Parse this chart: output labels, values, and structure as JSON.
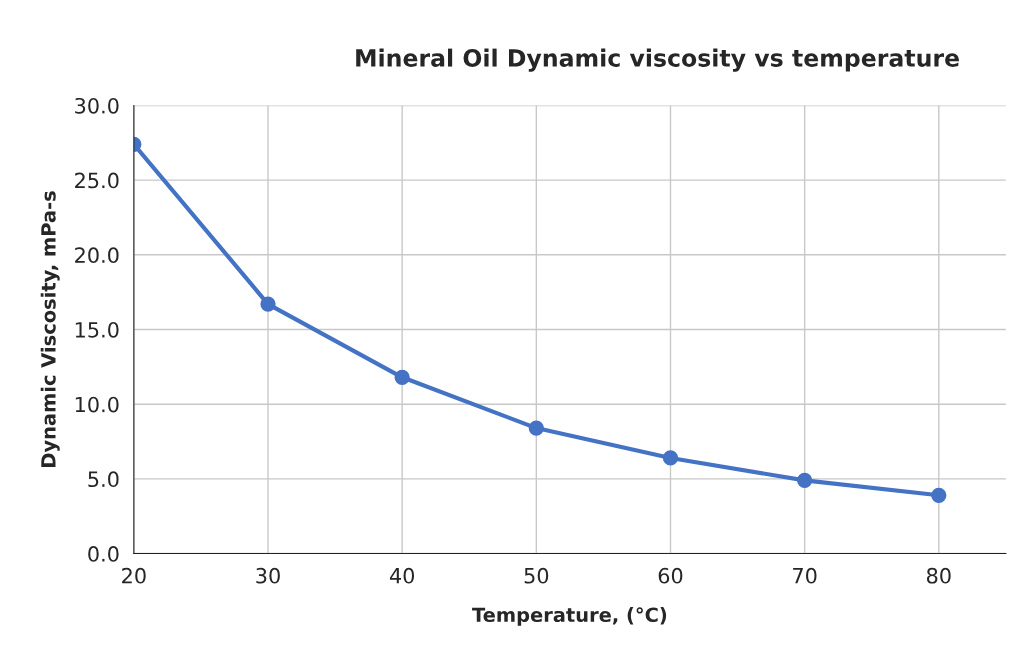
{
  "chart_data": {
    "type": "line",
    "title": "Mineral Oil Dynamic viscosity vs temperature",
    "xlabel": "Temperature, (°C)",
    "ylabel": "Dynamic Viscosity, mPa-s",
    "x": [
      20,
      30,
      40,
      50,
      60,
      70,
      80
    ],
    "series": [
      {
        "color": "#4472c4",
        "values": [
          27.4,
          16.7,
          11.8,
          8.4,
          6.4,
          4.9,
          3.9
        ]
      }
    ],
    "xlim": [
      20,
      85
    ],
    "xticks": [
      20,
      30,
      40,
      50,
      60,
      70,
      80
    ],
    "ylim": [
      0,
      30
    ],
    "yticks": [
      {
        "value": 0,
        "label": "0.0"
      },
      {
        "value": 5,
        "label": "5.0"
      },
      {
        "value": 10,
        "label": "10.0"
      },
      {
        "value": 15,
        "label": "15.0"
      },
      {
        "value": 20,
        "label": "20.0"
      },
      {
        "value": 25,
        "label": "25.0"
      },
      {
        "value": 30,
        "label": "30.0"
      }
    ],
    "grid": true,
    "marker": "circle",
    "line_style": "solid"
  }
}
